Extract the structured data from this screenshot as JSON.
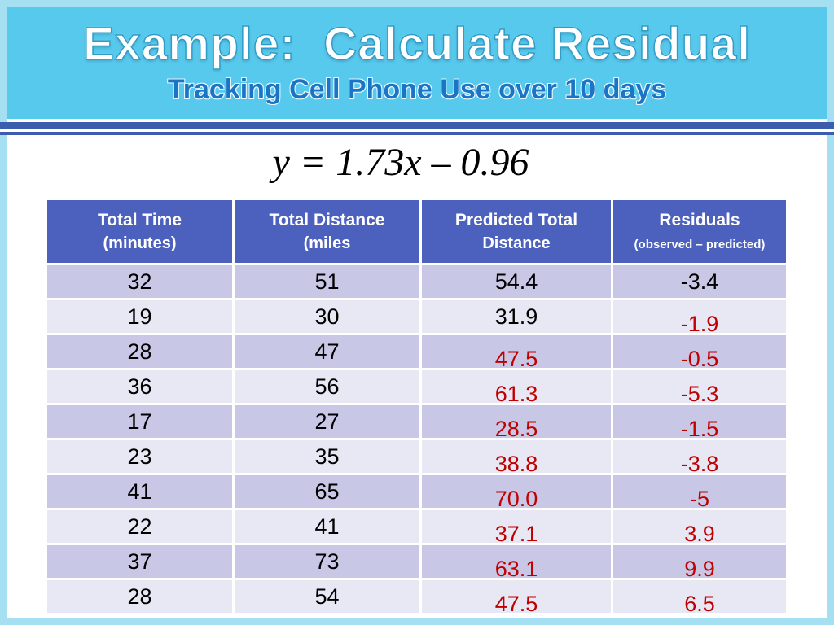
{
  "slide": {
    "title": "Example:  Calculate Residual",
    "subtitle": "Tracking Cell Phone Use over 10 days",
    "equation": "y = 1.73x – 0.96"
  },
  "table": {
    "headers": [
      {
        "line1": "Total Time",
        "line2": "(minutes)",
        "small": false
      },
      {
        "line1": "Total Distance",
        "line2": "(miles",
        "small": false
      },
      {
        "line1": "Predicted Total",
        "line2": "Distance",
        "small": false
      },
      {
        "line1": "Residuals",
        "line2": "(observed – predicted)",
        "small": true
      }
    ],
    "rows": [
      {
        "time": "32",
        "distance": "51",
        "predicted": "54.4",
        "residual": "-3.4",
        "predicted_style": "black",
        "residual_style": "black"
      },
      {
        "time": "19",
        "distance": "30",
        "predicted": "31.9",
        "residual": "-1.9",
        "predicted_style": "black",
        "residual_style": "red"
      },
      {
        "time": "28",
        "distance": "47",
        "predicted": "47.5",
        "residual": "-0.5",
        "predicted_style": "red",
        "residual_style": "red"
      },
      {
        "time": "36",
        "distance": "56",
        "predicted": "61.3",
        "residual": "-5.3",
        "predicted_style": "red",
        "residual_style": "red"
      },
      {
        "time": "17",
        "distance": "27",
        "predicted": "28.5",
        "residual": "-1.5",
        "predicted_style": "red",
        "residual_style": "red"
      },
      {
        "time": "23",
        "distance": "35",
        "predicted": "38.8",
        "residual": "-3.8",
        "predicted_style": "red",
        "residual_style": "red"
      },
      {
        "time": "41",
        "distance": "65",
        "predicted": "70.0",
        "residual": "-5",
        "predicted_style": "red",
        "residual_style": "red"
      },
      {
        "time": "22",
        "distance": "41",
        "predicted": "37.1",
        "residual": "3.9",
        "predicted_style": "red",
        "residual_style": "red"
      },
      {
        "time": "37",
        "distance": "73",
        "predicted": "63.1",
        "residual": "9.9",
        "predicted_style": "red",
        "residual_style": "red"
      },
      {
        "time": "28",
        "distance": "54",
        "predicted": "47.5",
        "residual": "6.5",
        "predicted_style": "red",
        "residual_style": "red"
      }
    ]
  },
  "colors": {
    "band": "#57c9ec",
    "frame": "#a5dff2",
    "separator": "#3a5dae",
    "header_bg": "#4c60bd",
    "row_odd": "#c8c7e6",
    "row_even": "#e8e8f4",
    "annotation_red": "#c00000",
    "subtitle_blue": "#1b74c4"
  }
}
